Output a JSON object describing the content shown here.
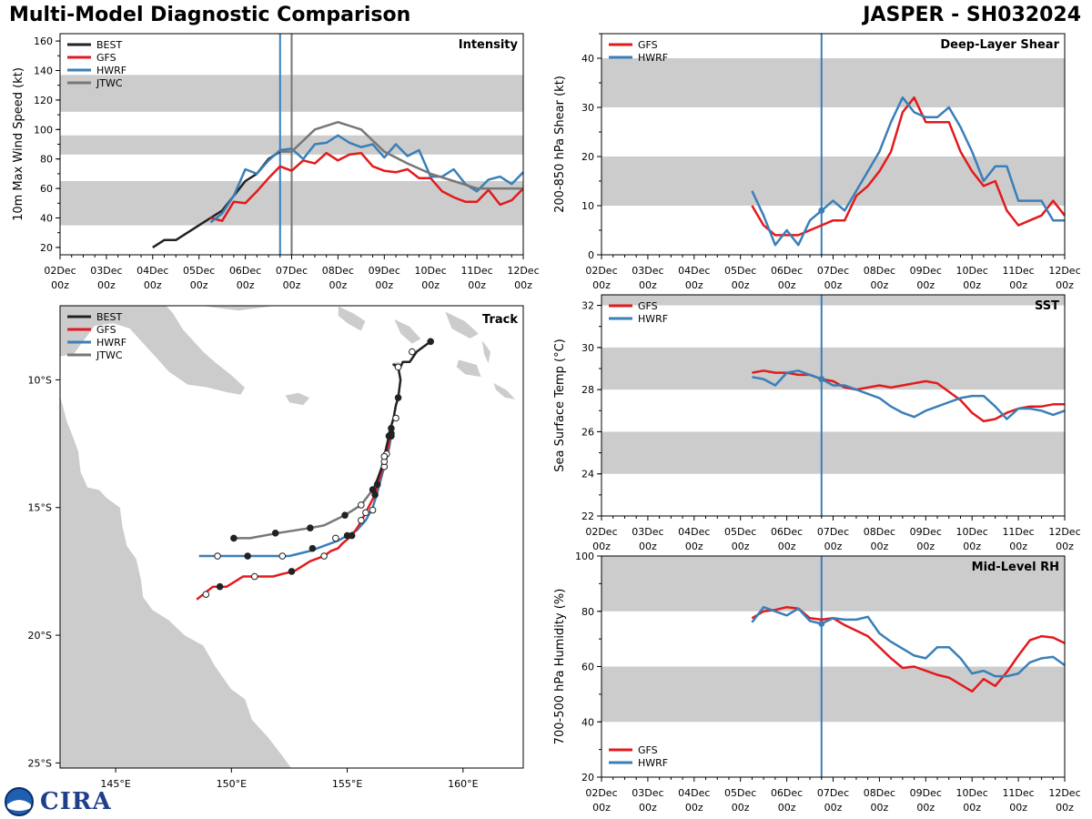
{
  "header": {
    "left_title": "Multi-Model Diagnostic Comparison",
    "right_title": "JASPER - SH032024"
  },
  "logo": {
    "text": "CIRA"
  },
  "colors": {
    "BEST": "#222222",
    "GFS": "#e31a1c",
    "HWRF": "#3a7fb8",
    "JTWC": "#777777",
    "band": "#cccccc",
    "land": "#cccccc",
    "marker_line": "#3a7fb8",
    "marker_line2": "#777777"
  },
  "time_axis": {
    "labels_day": [
      "02Dec",
      "03Dec",
      "04Dec",
      "05Dec",
      "06Dec",
      "07Dec",
      "08Dec",
      "09Dec",
      "10Dec",
      "11Dec",
      "12Dec"
    ],
    "label_hour": "00z",
    "range_days": [
      0,
      10
    ],
    "current_time": 4.75,
    "jtwc_time": 5.0
  },
  "chart_data": [
    {
      "id": "intensity",
      "type": "line",
      "title": "Intensity",
      "ylabel": "10m Max Wind Speed (kt)",
      "ylim": [
        15,
        165
      ],
      "yticks": [
        20,
        40,
        60,
        80,
        100,
        120,
        140,
        160
      ],
      "bands": [
        [
          35,
          65
        ],
        [
          83,
          96
        ],
        [
          112,
          137
        ]
      ],
      "vlines": [
        "current_time",
        "jtwc_time"
      ],
      "legend": [
        "BEST",
        "GFS",
        "HWRF",
        "JTWC"
      ],
      "series": [
        {
          "name": "BEST",
          "x": [
            2.0,
            2.25,
            2.5,
            2.75,
            3.0,
            3.25,
            3.5,
            3.75,
            4.0,
            4.25,
            4.5,
            4.75
          ],
          "values": [
            20,
            25,
            25,
            30,
            35,
            40,
            45,
            55,
            65,
            70,
            80,
            85
          ]
        },
        {
          "name": "GFS",
          "x": [
            3.25,
            3.5,
            3.75,
            4.0,
            4.25,
            4.5,
            4.75,
            5.0,
            5.25,
            5.5,
            5.75,
            6.0,
            6.25,
            6.5,
            6.75,
            7.0,
            7.25,
            7.5,
            7.75,
            8.0,
            8.25,
            8.5,
            8.75,
            9.0,
            9.25,
            9.5,
            9.75,
            10.0
          ],
          "values": [
            40,
            38,
            51,
            50,
            58,
            67,
            75,
            72,
            79,
            77,
            84,
            79,
            83,
            84,
            75,
            72,
            71,
            73,
            67,
            67,
            58,
            54,
            51,
            51,
            59,
            49,
            52,
            60
          ]
        },
        {
          "name": "HWRF",
          "x": [
            3.25,
            3.5,
            3.75,
            4.0,
            4.25,
            4.5,
            4.75,
            5.0,
            5.25,
            5.5,
            5.75,
            6.0,
            6.25,
            6.5,
            6.75,
            7.0,
            7.25,
            7.5,
            7.75,
            8.0,
            8.25,
            8.5,
            8.75,
            9.0,
            9.25,
            9.5,
            9.75,
            10.0
          ],
          "values": [
            37,
            43,
            55,
            73,
            70,
            79,
            86,
            87,
            80,
            90,
            91,
            96,
            91,
            88,
            90,
            81,
            90,
            82,
            86,
            68,
            68,
            73,
            63,
            58,
            66,
            68,
            63,
            71
          ]
        },
        {
          "name": "JTWC",
          "x": [
            4.75,
            5.0,
            5.5,
            6.0,
            6.5,
            7.0,
            7.5,
            8.0,
            8.5,
            9.0,
            9.5,
            10.0
          ],
          "values": [
            85,
            85,
            100,
            105,
            100,
            85,
            77,
            70,
            65,
            60,
            60,
            60
          ]
        }
      ]
    },
    {
      "id": "shear",
      "type": "line",
      "title": "Deep-Layer Shear",
      "ylabel": "200-850 hPa Shear (kt)",
      "ylim": [
        0,
        45
      ],
      "yticks": [
        0,
        10,
        20,
        30,
        40
      ],
      "bands": [
        [
          10,
          20
        ],
        [
          30,
          40
        ]
      ],
      "vlines": [
        "current_time"
      ],
      "legend": [
        "GFS",
        "HWRF"
      ],
      "series": [
        {
          "name": "GFS",
          "x": [
            3.25,
            3.5,
            3.75,
            4.0,
            4.25,
            4.5,
            4.75,
            5.0,
            5.25,
            5.5,
            5.75,
            6.0,
            6.25,
            6.5,
            6.75,
            7.0,
            7.25,
            7.5,
            7.75,
            8.0,
            8.25,
            8.5,
            8.75,
            9.0,
            9.25,
            9.5,
            9.75,
            10.0
          ],
          "values": [
            10,
            6,
            4,
            4,
            4,
            5,
            6,
            7,
            7,
            12,
            14,
            17,
            21,
            29,
            32,
            27,
            27,
            27,
            21,
            17,
            14,
            15,
            9,
            6,
            7,
            8,
            11,
            8
          ]
        },
        {
          "name": "HWRF",
          "x": [
            3.25,
            3.5,
            3.75,
            4.0,
            4.25,
            4.5,
            4.75,
            5.0,
            5.25,
            5.5,
            5.75,
            6.0,
            6.25,
            6.5,
            6.75,
            7.0,
            7.25,
            7.5,
            7.75,
            8.0,
            8.25,
            8.5,
            8.75,
            9.0,
            9.25,
            9.5,
            9.75,
            10.0
          ],
          "values": [
            13,
            8,
            2,
            5,
            2,
            7,
            9,
            11,
            9,
            13,
            17,
            21,
            27,
            32,
            29,
            28,
            28,
            30,
            26,
            21,
            15,
            18,
            18,
            11,
            11,
            11,
            7,
            7
          ]
        }
      ]
    },
    {
      "id": "sst",
      "type": "line",
      "title": "SST",
      "ylabel": "Sea Surface Temp (°C)",
      "ylim": [
        22,
        32.5
      ],
      "yticks": [
        22,
        24,
        26,
        28,
        30,
        32
      ],
      "bands": [
        [
          24,
          26
        ],
        [
          28,
          30
        ],
        [
          32,
          32.5
        ]
      ],
      "vlines": [
        "current_time"
      ],
      "legend": [
        "GFS",
        "HWRF"
      ],
      "series": [
        {
          "name": "GFS",
          "x": [
            3.25,
            3.5,
            3.75,
            4.0,
            4.25,
            4.5,
            4.75,
            5.0,
            5.25,
            5.5,
            5.75,
            6.0,
            6.25,
            6.5,
            6.75,
            7.0,
            7.25,
            7.5,
            7.75,
            8.0,
            8.25,
            8.5,
            8.75,
            9.0,
            9.25,
            9.5,
            9.75,
            10.0
          ],
          "values": [
            28.8,
            28.9,
            28.8,
            28.8,
            28.7,
            28.7,
            28.5,
            28.4,
            28.1,
            28.0,
            28.1,
            28.2,
            28.1,
            28.2,
            28.3,
            28.4,
            28.3,
            27.9,
            27.5,
            26.9,
            26.5,
            26.6,
            26.9,
            27.1,
            27.2,
            27.2,
            27.3,
            27.3
          ]
        },
        {
          "name": "HWRF",
          "x": [
            3.25,
            3.5,
            3.75,
            4.0,
            4.25,
            4.5,
            4.75,
            5.0,
            5.25,
            5.5,
            5.75,
            6.0,
            6.25,
            6.5,
            6.75,
            7.0,
            7.25,
            7.5,
            7.75,
            8.0,
            8.25,
            8.5,
            8.75,
            9.0,
            9.25,
            9.5,
            9.75,
            10.0
          ],
          "values": [
            28.6,
            28.5,
            28.2,
            28.8,
            28.9,
            28.7,
            28.5,
            28.2,
            28.2,
            28.0,
            27.8,
            27.6,
            27.2,
            26.9,
            26.7,
            27.0,
            27.2,
            27.4,
            27.6,
            27.7,
            27.7,
            27.2,
            26.6,
            27.1,
            27.1,
            27.0,
            26.8,
            27.0
          ]
        }
      ]
    },
    {
      "id": "rh",
      "type": "line",
      "title": "Mid-Level RH",
      "ylabel": "700-500 hPa Humidity (%)",
      "ylim": [
        20,
        100
      ],
      "yticks": [
        20,
        40,
        60,
        80,
        100
      ],
      "bands": [
        [
          40,
          60
        ],
        [
          80,
          100
        ]
      ],
      "vlines": [
        "current_time"
      ],
      "legend": [
        "GFS",
        "HWRF"
      ],
      "series": [
        {
          "name": "GFS",
          "x": [
            3.25,
            3.5,
            3.75,
            4.0,
            4.25,
            4.5,
            4.75,
            5.0,
            5.25,
            5.5,
            5.75,
            6.0,
            6.25,
            6.5,
            6.75,
            7.0,
            7.25,
            7.5,
            7.75,
            8.0,
            8.25,
            8.5,
            8.75,
            9.0,
            9.25,
            9.5,
            9.75,
            10.0
          ],
          "values": [
            77.5,
            80,
            80.5,
            81.5,
            81,
            77.5,
            77,
            77.5,
            75,
            73,
            71,
            67,
            63,
            59.5,
            60,
            58.5,
            57,
            56,
            53.5,
            51,
            55.5,
            53,
            58,
            64,
            69.5,
            71,
            70.5,
            68.5
          ]
        },
        {
          "name": "HWRF",
          "x": [
            3.25,
            3.5,
            3.75,
            4.0,
            4.25,
            4.5,
            4.75,
            5.0,
            5.25,
            5.5,
            5.75,
            6.0,
            6.25,
            6.5,
            6.75,
            7.0,
            7.25,
            7.5,
            7.75,
            8.0,
            8.25,
            8.5,
            8.75,
            9.0,
            9.25,
            9.5,
            9.75,
            10.0
          ],
          "values": [
            76,
            81.5,
            80,
            78.5,
            81,
            76.5,
            75.5,
            77.5,
            77,
            77,
            78,
            72,
            69,
            66.5,
            64,
            63,
            67,
            67,
            63,
            57.5,
            58.5,
            56.5,
            56.5,
            57.5,
            61.5,
            63,
            63.5,
            60.5
          ]
        }
      ]
    },
    {
      "id": "track",
      "type": "scatter",
      "title": "Track",
      "xlim": [
        142.6,
        162.6
      ],
      "ylim": [
        -25.2,
        -7.1
      ],
      "xticks": [
        145,
        150,
        155,
        160
      ],
      "xtick_labels": [
        "145°E",
        "150°E",
        "155°E",
        "160°E"
      ],
      "yticks": [
        -10,
        -15,
        -20,
        -25
      ],
      "ytick_labels": [
        "10°S",
        "15°S",
        "20°S",
        "25°S"
      ],
      "legend": [
        "BEST",
        "GFS",
        "HWRF",
        "JTWC"
      ],
      "tracks": [
        {
          "name": "BEST",
          "lon": [
            158.6,
            158.0,
            157.7,
            157.4,
            157.3,
            157.0,
            157.2,
            157.3,
            157.2,
            157.1,
            157.0,
            156.9,
            156.8,
            156.7,
            156.6,
            156.5,
            156.3,
            156.2
          ],
          "lat": [
            -8.5,
            -8.9,
            -9.3,
            -9.3,
            -9.5,
            -9.4,
            -9.5,
            -10.0,
            -10.7,
            -11.0,
            -11.5,
            -11.8,
            -12.2,
            -12.6,
            -13.0,
            -13.4,
            -13.9,
            -14.1
          ],
          "markers": [
            [
              158.6,
              -8.5,
              "f"
            ],
            [
              157.8,
              -8.9,
              "o"
            ],
            [
              157.2,
              -9.5,
              "o"
            ],
            [
              157.2,
              -10.7,
              "f"
            ],
            [
              157.1,
              -11.5,
              "o"
            ],
            [
              156.9,
              -12.2,
              "f"
            ],
            [
              156.6,
              -13.0,
              "o"
            ],
            [
              156.3,
              -14.1,
              "f"
            ]
          ]
        },
        {
          "name": "GFS",
          "lon": [
            156.9,
            156.8,
            156.6,
            156.2,
            155.8,
            155.5,
            155.2,
            154.8,
            154.6,
            154.3,
            154.0,
            153.4,
            152.7,
            152.2,
            151.8,
            151.2,
            150.5,
            149.8,
            149.2,
            148.5
          ],
          "lat": [
            -11.9,
            -12.5,
            -13.2,
            -14.5,
            -15.2,
            -15.7,
            -16.1,
            -16.4,
            -16.6,
            -16.7,
            -16.9,
            -17.1,
            -17.5,
            -17.6,
            -17.7,
            -17.7,
            -17.7,
            -18.1,
            -18.1,
            -18.6
          ],
          "markers": [
            [
              156.9,
              -11.9,
              "f"
            ],
            [
              156.6,
              -13.2,
              "o"
            ],
            [
              156.2,
              -14.5,
              "f"
            ],
            [
              155.8,
              -15.2,
              "o"
            ],
            [
              155.2,
              -16.1,
              "f"
            ],
            [
              154.0,
              -16.9,
              "o"
            ],
            [
              152.6,
              -17.5,
              "f"
            ],
            [
              151.0,
              -17.7,
              "o"
            ],
            [
              149.5,
              -18.1,
              "f"
            ],
            [
              148.9,
              -18.4,
              "o"
            ]
          ]
        },
        {
          "name": "HWRF",
          "lon": [
            156.9,
            156.8,
            156.6,
            156.3,
            156.1,
            155.8,
            155.4,
            155.0,
            154.6,
            154.0,
            153.4,
            152.5,
            151.5,
            150.5,
            149.5,
            148.6
          ],
          "lat": [
            -12.2,
            -12.7,
            -13.4,
            -14.4,
            -15.0,
            -15.5,
            -15.9,
            -16.1,
            -16.3,
            -16.5,
            -16.7,
            -16.9,
            -16.9,
            -16.9,
            -16.9,
            -16.9
          ],
          "markers": [
            [
              156.8,
              -12.2,
              "f"
            ],
            [
              156.6,
              -13.4,
              "o"
            ],
            [
              156.1,
              -15.1,
              "o"
            ],
            [
              155.6,
              -15.5,
              "o"
            ],
            [
              155.0,
              -16.1,
              "f"
            ],
            [
              154.5,
              -16.2,
              "o"
            ],
            [
              153.5,
              -16.6,
              "f"
            ],
            [
              152.2,
              -16.9,
              "o"
            ],
            [
              150.7,
              -16.9,
              "f"
            ],
            [
              149.4,
              -16.9,
              "o"
            ]
          ]
        },
        {
          "name": "JTWC",
          "lon": [
            156.9,
            156.7,
            156.5,
            156.1,
            155.6,
            154.9,
            154.0,
            153.4,
            152.0,
            150.8,
            150.1
          ],
          "lat": [
            -12.0,
            -12.8,
            -13.6,
            -14.3,
            -14.9,
            -15.3,
            -15.7,
            -15.8,
            -16.0,
            -16.2,
            -16.2
          ],
          "markers": [
            [
              156.9,
              -12.1,
              "f"
            ],
            [
              156.7,
              -12.9,
              "o"
            ],
            [
              156.1,
              -14.3,
              "f"
            ],
            [
              155.6,
              -14.9,
              "o"
            ],
            [
              154.9,
              -15.3,
              "f"
            ],
            [
              153.4,
              -15.8,
              "f"
            ],
            [
              151.9,
              -16.0,
              "f"
            ],
            [
              150.1,
              -16.2,
              "f"
            ]
          ]
        }
      ]
    }
  ]
}
